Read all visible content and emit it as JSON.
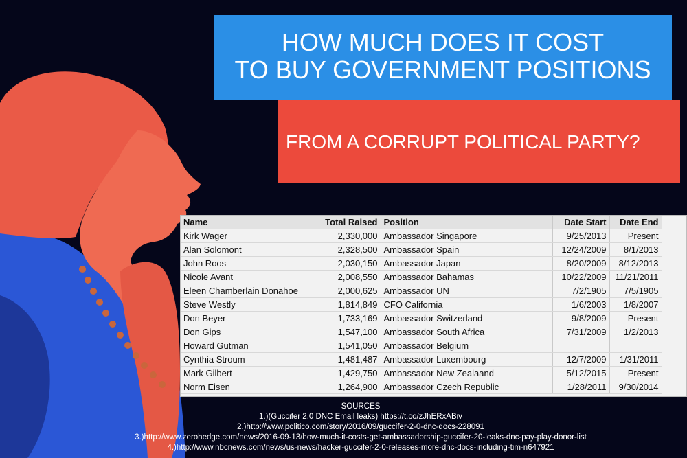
{
  "title_line1": "HOW MUCH DOES IT COST",
  "title_line2": "TO BUY GOVERNMENT POSITIONS",
  "subtitle": "FROM A CORRUPT POLITICAL PARTY?",
  "colors": {
    "background": "#05061a",
    "title_box": "#2b8fe6",
    "subtitle_box": "#ec4a3c",
    "figure_red": "#ec5b45",
    "figure_blue": "#2b57d6"
  },
  "table": {
    "headers": [
      "Name",
      "Total Raised",
      "Position",
      "Date Start",
      "Date End"
    ],
    "rows": [
      [
        "Kirk Wager",
        "2,330,000",
        "Ambassador Singapore",
        "9/25/2013",
        "Present"
      ],
      [
        "Alan Solomont",
        "2,328,500",
        "Ambassador Spain",
        "12/24/2009",
        "8/1/2013"
      ],
      [
        "John Roos",
        "2,030,150",
        "Ambassador Japan",
        "8/20/2009",
        "8/12/2013"
      ],
      [
        "Nicole Avant",
        "2,008,550",
        "Ambassador Bahamas",
        "10/22/2009",
        "11/21/2011"
      ],
      [
        "Eleen Chamberlain Donahoe",
        "2,000,625",
        "Ambassador UN",
        "7/2/1905",
        "7/5/1905"
      ],
      [
        "Steve Westly",
        "1,814,849",
        "CFO California",
        "1/6/2003",
        "1/8/2007"
      ],
      [
        "Don Beyer",
        "1,733,169",
        "Ambassador Switzerland",
        "9/8/2009",
        "Present"
      ],
      [
        "Don Gips",
        "1,547,100",
        "Ambassador South Africa",
        "7/31/2009",
        "1/2/2013"
      ],
      [
        "Howard Gutman",
        "1,541,050",
        "Ambassador Belgium",
        "",
        ""
      ],
      [
        "Cynthia Stroum",
        "1,481,487",
        "Ambassador Luxembourg",
        "12/7/2009",
        "1/31/2011"
      ],
      [
        "Mark Gilbert",
        "1,429,750",
        "Ambassador New Zealaand",
        "5/12/2015",
        "Present"
      ],
      [
        "Norm Eisen",
        "1,264,900",
        "Ambassador Czech Republic",
        "1/28/2011",
        "9/30/2014"
      ]
    ]
  },
  "sources": {
    "heading": "SOURCES",
    "items": [
      "1.)(Guccifer 2.0 DNC Email leaks) https://t.co/zJhERxABiv",
      "2.)http://www.politico.com/story/2016/09/guccifer-2-0-dnc-docs-228091",
      "3.)http://www.zerohedge.com/news/2016-09-13/how-much-it-costs-get-ambassadorship-guccifer-20-leaks-dnc-pay-play-donor-list",
      "4.)http://www.nbcnews.com/news/us-news/hacker-guccifer-2-0-releases-more-dnc-docs-including-tim-n647921"
    ]
  }
}
